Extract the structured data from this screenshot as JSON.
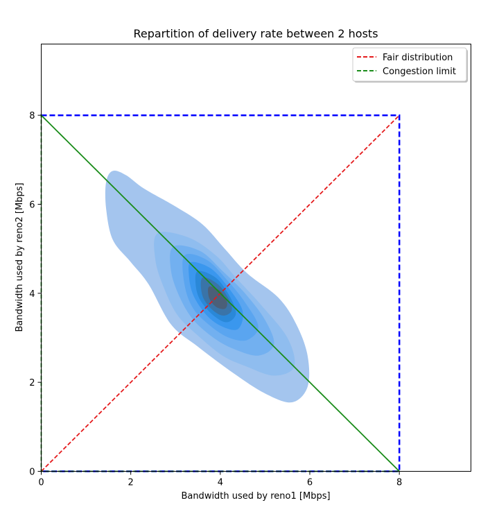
{
  "chart_data": {
    "type": "density",
    "title": "Repartition of delivery rate between 2 hosts",
    "xlabel": "Bandwidth used by reno1 [Mbps]",
    "ylabel": "Bandwidth used by reno2 [Mbps]",
    "xlim": [
      0,
      9.6
    ],
    "ylim": [
      0,
      9.6
    ],
    "xticks": [
      0,
      2,
      4,
      6,
      8
    ],
    "yticks": [
      0,
      2,
      4,
      6,
      8
    ],
    "grid": false,
    "legend_position": "top-right",
    "series": [
      {
        "name": "Fair distribution",
        "style": "dashed",
        "color": "#e41a1c",
        "x": [
          0,
          8
        ],
        "y": [
          0,
          8
        ]
      },
      {
        "name": "Congestion limit",
        "style": "dashed",
        "color": "#1a8c1a",
        "x": [
          0,
          8,
          0,
          0,
          8
        ],
        "y": [
          8,
          0,
          0,
          8,
          0
        ]
      }
    ],
    "capacity_box": {
      "color": "#0000ff",
      "style": "dashed",
      "x": [
        0,
        8,
        8,
        0
      ],
      "y": [
        8,
        8,
        0,
        0
      ]
    },
    "density": {
      "center": [
        3.9,
        4.0
      ],
      "levels": [
        {
          "color": "#a4c5ee",
          "points": [
            [
              1.45,
              6.5
            ],
            [
              1.6,
              6.75
            ],
            [
              1.9,
              6.65
            ],
            [
              2.3,
              6.35
            ],
            [
              3.0,
              5.95
            ],
            [
              3.6,
              5.55
            ],
            [
              4.1,
              5.0
            ],
            [
              4.6,
              4.45
            ],
            [
              5.3,
              3.9
            ],
            [
              5.7,
              3.3
            ],
            [
              5.95,
              2.6
            ],
            [
              5.95,
              1.9
            ],
            [
              5.6,
              1.55
            ],
            [
              5.0,
              1.75
            ],
            [
              4.3,
              2.2
            ],
            [
              3.5,
              2.8
            ],
            [
              2.9,
              3.3
            ],
            [
              2.4,
              4.2
            ],
            [
              2.0,
              4.7
            ],
            [
              1.6,
              5.2
            ],
            [
              1.45,
              5.9
            ]
          ]
        },
        {
          "color": "#8fbdef",
          "points": [
            [
              2.6,
              5.35
            ],
            [
              3.3,
              5.25
            ],
            [
              3.9,
              4.85
            ],
            [
              4.35,
              4.35
            ],
            [
              4.9,
              3.75
            ],
            [
              5.5,
              3.0
            ],
            [
              5.65,
              2.35
            ],
            [
              5.2,
              2.15
            ],
            [
              4.6,
              2.35
            ],
            [
              4.05,
              2.6
            ],
            [
              3.5,
              3.05
            ],
            [
              3.05,
              3.5
            ],
            [
              2.75,
              4.1
            ],
            [
              2.55,
              4.75
            ]
          ]
        },
        {
          "color": "#72b0f0",
          "points": [
            [
              2.95,
              5.05
            ],
            [
              3.55,
              4.95
            ],
            [
              4.05,
              4.5
            ],
            [
              4.55,
              4.0
            ],
            [
              5.0,
              3.4
            ],
            [
              5.2,
              2.85
            ],
            [
              4.85,
              2.6
            ],
            [
              4.3,
              2.75
            ],
            [
              3.85,
              3.0
            ],
            [
              3.4,
              3.4
            ],
            [
              3.1,
              3.9
            ],
            [
              2.9,
              4.5
            ]
          ]
        },
        {
          "color": "#5aa5f0",
          "points": [
            [
              3.2,
              4.85
            ],
            [
              3.7,
              4.75
            ],
            [
              4.15,
              4.3
            ],
            [
              4.55,
              3.8
            ],
            [
              4.85,
              3.25
            ],
            [
              4.6,
              2.95
            ],
            [
              4.2,
              3.0
            ],
            [
              3.8,
              3.25
            ],
            [
              3.4,
              3.65
            ],
            [
              3.2,
              4.2
            ]
          ]
        },
        {
          "color": "#3a97ee",
          "points": [
            [
              3.35,
              4.7
            ],
            [
              3.8,
              4.55
            ],
            [
              4.2,
              4.1
            ],
            [
              4.5,
              3.6
            ],
            [
              4.4,
              3.2
            ],
            [
              4.05,
              3.25
            ],
            [
              3.7,
              3.5
            ],
            [
              3.4,
              3.95
            ],
            [
              3.3,
              4.4
            ]
          ]
        },
        {
          "color": "#2a88d8",
          "points": [
            [
              3.5,
              4.5
            ],
            [
              3.9,
              4.35
            ],
            [
              4.2,
              3.95
            ],
            [
              4.35,
              3.55
            ],
            [
              4.15,
              3.35
            ],
            [
              3.85,
              3.5
            ],
            [
              3.55,
              3.85
            ],
            [
              3.45,
              4.2
            ]
          ]
        },
        {
          "color": "#3a74a8",
          "points": [
            [
              3.6,
              4.35
            ],
            [
              3.95,
              4.2
            ],
            [
              4.2,
              3.85
            ],
            [
              4.25,
              3.6
            ],
            [
              4.05,
              3.5
            ],
            [
              3.8,
              3.65
            ],
            [
              3.6,
              3.95
            ]
          ]
        },
        {
          "color": "#4b5f78",
          "points": [
            [
              3.75,
              4.15
            ],
            [
              4.0,
              4.05
            ],
            [
              4.15,
              3.8
            ],
            [
              4.1,
              3.65
            ],
            [
              3.9,
              3.7
            ],
            [
              3.75,
              3.9
            ]
          ]
        }
      ]
    }
  }
}
